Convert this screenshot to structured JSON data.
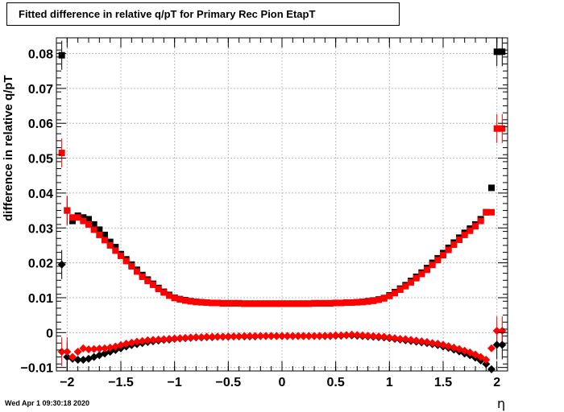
{
  "title": "Fitted difference in relative q/pT for Primary Rec Pion EtapT",
  "timestamp": "Wed Apr  1 09:30:18 2020",
  "chart_data": {
    "type": "scatter",
    "title": "Fitted difference in relative q/pT for Primary Rec Pion EtapT",
    "xlabel": "η",
    "ylabel": "difference in relative q/pT",
    "xlim": [
      -2.1,
      2.1
    ],
    "ylim": [
      -0.011,
      0.0845
    ],
    "x_ticks": [
      -2,
      -1.5,
      -1,
      -0.5,
      0,
      0.5,
      1,
      1.5,
      2
    ],
    "x_tick_labels": [
      "−2",
      "−1.5",
      "−1",
      "−0.5",
      "0",
      "0.5",
      "1",
      "1.5",
      "2"
    ],
    "y_ticks": [
      -0.01,
      0,
      0.01,
      0.02,
      0.03,
      0.04,
      0.05,
      0.06,
      0.07,
      0.08
    ],
    "y_tick_labels": [
      "−0.01",
      "0",
      "0.01",
      "0.02",
      "0.03",
      "0.04",
      "0.05",
      "0.06",
      "0.07",
      "0.08"
    ],
    "grid": true,
    "colors": {
      "black": "#000000",
      "red": "#ff0000"
    },
    "x": [
      -2.05,
      -2.0,
      -1.95,
      -1.9,
      -1.85,
      -1.8,
      -1.75,
      -1.7,
      -1.65,
      -1.6,
      -1.55,
      -1.5,
      -1.45,
      -1.4,
      -1.35,
      -1.3,
      -1.25,
      -1.2,
      -1.15,
      -1.1,
      -1.05,
      -1.0,
      -0.95,
      -0.9,
      -0.85,
      -0.8,
      -0.75,
      -0.7,
      -0.65,
      -0.6,
      -0.55,
      -0.5,
      -0.45,
      -0.4,
      -0.35,
      -0.3,
      -0.25,
      -0.2,
      -0.15,
      -0.1,
      -0.05,
      0.0,
      0.05,
      0.1,
      0.15,
      0.2,
      0.25,
      0.3,
      0.35,
      0.4,
      0.45,
      0.5,
      0.55,
      0.6,
      0.65,
      0.7,
      0.75,
      0.8,
      0.85,
      0.9,
      0.95,
      1.0,
      1.05,
      1.1,
      1.15,
      1.2,
      1.25,
      1.3,
      1.35,
      1.4,
      1.45,
      1.5,
      1.55,
      1.6,
      1.65,
      1.7,
      1.75,
      1.8,
      1.85,
      1.9,
      1.95,
      2.0,
      2.05
    ],
    "series": [
      {
        "marker": "square",
        "color": "#000000",
        "values": [
          0.0795,
          0.035,
          0.032,
          0.0335,
          0.033,
          0.0325,
          0.031,
          0.0295,
          0.028,
          0.026,
          0.0245,
          0.0225,
          0.021,
          0.0195,
          0.018,
          0.0165,
          0.0152,
          0.014,
          0.0128,
          0.0117,
          0.0108,
          0.01,
          0.0096,
          0.0093,
          0.009,
          0.0088,
          0.0087,
          0.0086,
          0.0085,
          0.0085,
          0.0084,
          0.0084,
          0.0084,
          0.0084,
          0.0083,
          0.0083,
          0.0083,
          0.0083,
          0.0083,
          0.0083,
          0.0083,
          0.0083,
          0.0083,
          0.0083,
          0.0083,
          0.0083,
          0.0083,
          0.0084,
          0.0084,
          0.0084,
          0.0084,
          0.0085,
          0.0085,
          0.0086,
          0.0086,
          0.0087,
          0.0088,
          0.009,
          0.0092,
          0.0095,
          0.0099,
          0.0107,
          0.0116,
          0.0126,
          0.0136,
          0.0148,
          0.016,
          0.0172,
          0.0185,
          0.02,
          0.0213,
          0.0228,
          0.0243,
          0.0258,
          0.0272,
          0.0286,
          0.0298,
          0.031,
          0.0325,
          0.0345,
          0.0415,
          0.0805,
          0.0805
        ]
      },
      {
        "marker": "square",
        "color": "#ff0000",
        "values": [
          0.0515,
          0.035,
          0.033,
          0.033,
          0.032,
          0.031,
          0.0295,
          0.028,
          0.0265,
          0.025,
          0.0235,
          0.022,
          0.0205,
          0.019,
          0.0175,
          0.016,
          0.0148,
          0.0137,
          0.0125,
          0.0115,
          0.0106,
          0.0099,
          0.0095,
          0.0092,
          0.009,
          0.0088,
          0.0087,
          0.0086,
          0.0085,
          0.0085,
          0.0084,
          0.0084,
          0.0084,
          0.0084,
          0.0083,
          0.0083,
          0.0083,
          0.0083,
          0.0083,
          0.0083,
          0.0083,
          0.0083,
          0.0083,
          0.0083,
          0.0083,
          0.0083,
          0.0083,
          0.0084,
          0.0084,
          0.0084,
          0.0084,
          0.0085,
          0.0085,
          0.0086,
          0.0086,
          0.0087,
          0.0088,
          0.0089,
          0.0091,
          0.0094,
          0.0098,
          0.0105,
          0.0113,
          0.0123,
          0.0133,
          0.0144,
          0.0156,
          0.0168,
          0.018,
          0.0194,
          0.0208,
          0.0222,
          0.0237,
          0.0252,
          0.0266,
          0.028,
          0.0292,
          0.0305,
          0.032,
          0.0345,
          0.0345,
          0.0585,
          0.0585
        ]
      },
      {
        "marker": "diamond",
        "color": "#000000",
        "values": [
          0.0195,
          -0.007,
          -0.0075,
          -0.0078,
          -0.0078,
          -0.0075,
          -0.007,
          -0.0065,
          -0.006,
          -0.0055,
          -0.005,
          -0.0045,
          -0.004,
          -0.0036,
          -0.0033,
          -0.003,
          -0.0027,
          -0.0025,
          -0.0023,
          -0.0021,
          -0.002,
          -0.0018,
          -0.0017,
          -0.0016,
          -0.0015,
          -0.0014,
          -0.0014,
          -0.0013,
          -0.0013,
          -0.0012,
          -0.0012,
          -0.0012,
          -0.0011,
          -0.0011,
          -0.0011,
          -0.0011,
          -0.0011,
          -0.001,
          -0.001,
          -0.001,
          -0.001,
          -0.001,
          -0.001,
          -0.001,
          -0.001,
          -0.001,
          -0.001,
          -0.001,
          -0.001,
          -0.001,
          -0.001,
          -0.0009,
          -0.0009,
          -0.0008,
          -0.0008,
          -0.0009,
          -0.001,
          -0.0011,
          -0.0012,
          -0.0013,
          -0.0014,
          -0.0016,
          -0.0018,
          -0.002,
          -0.0022,
          -0.0024,
          -0.0026,
          -0.0028,
          -0.003,
          -0.0033,
          -0.0036,
          -0.004,
          -0.0044,
          -0.0049,
          -0.0054,
          -0.006,
          -0.0065,
          -0.0072,
          -0.008,
          -0.009,
          -0.0105,
          -0.0035,
          -0.0035
        ]
      },
      {
        "marker": "diamond",
        "color": "#ff0000",
        "values": [
          -0.0055,
          -0.0055,
          -0.007,
          -0.0055,
          -0.0045,
          -0.0048,
          -0.0047,
          -0.0046,
          -0.0045,
          -0.0043,
          -0.004,
          -0.0036,
          -0.0032,
          -0.0029,
          -0.0026,
          -0.0024,
          -0.0022,
          -0.0021,
          -0.002,
          -0.0019,
          -0.0018,
          -0.0017,
          -0.0016,
          -0.0015,
          -0.0014,
          -0.0013,
          -0.0013,
          -0.0012,
          -0.0012,
          -0.0012,
          -0.0012,
          -0.0011,
          -0.0011,
          -0.0011,
          -0.001,
          -0.001,
          -0.001,
          -0.001,
          -0.001,
          -0.001,
          -0.001,
          -0.001,
          -0.001,
          -0.001,
          -0.001,
          -0.001,
          -0.001,
          -0.001,
          -0.001,
          -0.0009,
          -0.0009,
          -0.0008,
          -0.0008,
          -0.0007,
          -0.0006,
          -0.0007,
          -0.0008,
          -0.0009,
          -0.001,
          -0.0011,
          -0.0012,
          -0.0014,
          -0.0016,
          -0.0018,
          -0.0019,
          -0.0021,
          -0.0023,
          -0.0025,
          -0.0027,
          -0.003,
          -0.0032,
          -0.0035,
          -0.0039,
          -0.0043,
          -0.0047,
          -0.0052,
          -0.0057,
          -0.0063,
          -0.007,
          -0.0078,
          -0.0045,
          0.0005,
          0.0005
        ]
      }
    ]
  }
}
